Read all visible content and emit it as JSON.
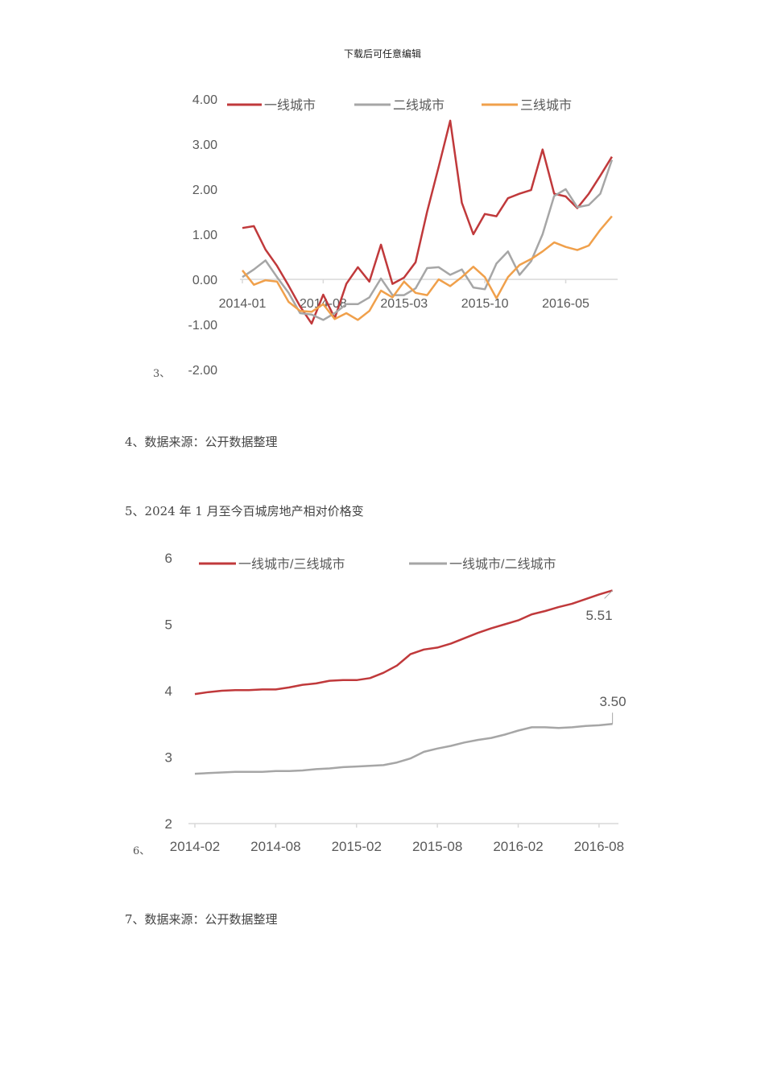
{
  "header": "下载后可任意编辑",
  "paragraphs": {
    "p3": "3、",
    "p4": "4、数据来源：公开数据整理",
    "p5": "5、2024 年 1 月至今百城房地产相对价格变",
    "p6": "6、",
    "p7": "7、数据来源：公开数据整理"
  },
  "chart_data": [
    {
      "type": "line",
      "title": "",
      "xlabel": "",
      "ylabel": "",
      "ylim": [
        -2,
        4
      ],
      "y_ticks": [
        "4.00",
        "3.00",
        "2.00",
        "1.00",
        "0.00",
        "-1.00",
        "-2.00"
      ],
      "x_tick_labels": [
        "2014-01",
        "2014-08",
        "2015-03",
        "2015-10",
        "2016-05"
      ],
      "grid": false,
      "legend": "top",
      "x": [
        "2014-01",
        "2014-02",
        "2014-03",
        "2014-04",
        "2014-05",
        "2014-06",
        "2014-07",
        "2014-08",
        "2014-09",
        "2014-10",
        "2014-11",
        "2014-12",
        "2015-01",
        "2015-02",
        "2015-03",
        "2015-04",
        "2015-05",
        "2015-06",
        "2015-07",
        "2015-08",
        "2015-09",
        "2015-10",
        "2015-11",
        "2015-12",
        "2016-01",
        "2016-02",
        "2016-03",
        "2016-04",
        "2016-05",
        "2016-06",
        "2016-07",
        "2016-08",
        "2016-09"
      ],
      "series": [
        {
          "name": "一线城市",
          "color": "#c0393b",
          "values": [
            1.14,
            1.18,
            0.66,
            0.3,
            -0.14,
            -0.6,
            -0.98,
            -0.34,
            -0.86,
            -0.1,
            0.27,
            -0.05,
            0.77,
            -0.1,
            0.04,
            0.38,
            1.5,
            2.5,
            3.52,
            1.7,
            1.0,
            1.45,
            1.4,
            1.8,
            1.9,
            1.98,
            2.88,
            1.9,
            1.84,
            1.58,
            1.9,
            2.3,
            2.72
          ]
        },
        {
          "name": "二线城市",
          "color": "#a6a6a6",
          "values": [
            0.05,
            0.22,
            0.42,
            0.05,
            -0.3,
            -0.75,
            -0.78,
            -0.9,
            -0.75,
            -0.55,
            -0.55,
            -0.4,
            0.02,
            -0.35,
            -0.35,
            -0.2,
            0.25,
            0.27,
            0.1,
            0.22,
            -0.18,
            -0.22,
            0.35,
            0.62,
            0.1,
            0.4,
            1.0,
            1.85,
            2.0,
            1.6,
            1.65,
            1.9,
            2.65
          ]
        },
        {
          "name": "三线城市",
          "color": "#f0a04b",
          "values": [
            0.2,
            -0.12,
            -0.02,
            -0.05,
            -0.5,
            -0.7,
            -0.72,
            -0.55,
            -0.88,
            -0.75,
            -0.9,
            -0.7,
            -0.25,
            -0.4,
            -0.05,
            -0.3,
            -0.35,
            0.0,
            -0.15,
            0.05,
            0.28,
            0.05,
            -0.42,
            0.05,
            0.32,
            0.45,
            0.62,
            0.82,
            0.72,
            0.65,
            0.75,
            1.1,
            1.4
          ]
        }
      ]
    },
    {
      "type": "line",
      "title": "",
      "xlabel": "",
      "ylabel": "",
      "ylim": [
        2,
        6
      ],
      "y_ticks": [
        "6",
        "5",
        "4",
        "3",
        "2"
      ],
      "x_tick_labels": [
        "2014-02",
        "2014-08",
        "2015-02",
        "2015-08",
        "2016-02",
        "2016-08"
      ],
      "grid": false,
      "legend": "top",
      "x": [
        "2014-02",
        "2014-03",
        "2014-04",
        "2014-05",
        "2014-06",
        "2014-07",
        "2014-08",
        "2014-09",
        "2014-10",
        "2014-11",
        "2014-12",
        "2015-01",
        "2015-02",
        "2015-03",
        "2015-04",
        "2015-05",
        "2015-06",
        "2015-07",
        "2015-08",
        "2015-09",
        "2015-10",
        "2015-11",
        "2015-12",
        "2016-01",
        "2016-02",
        "2016-03",
        "2016-04",
        "2016-05",
        "2016-06",
        "2016-07",
        "2016-08",
        "2016-09"
      ],
      "series": [
        {
          "name": "一线城市/三线城市",
          "color": "#c0393b",
          "values": [
            3.95,
            3.98,
            4.0,
            4.01,
            4.01,
            4.02,
            4.02,
            4.05,
            4.09,
            4.11,
            4.15,
            4.16,
            4.16,
            4.19,
            4.27,
            4.38,
            4.55,
            4.62,
            4.65,
            4.71,
            4.79,
            4.87,
            4.94,
            5.0,
            5.06,
            5.15,
            5.2,
            5.26,
            5.31,
            5.38,
            5.45,
            5.51
          ],
          "end_label": "5.51"
        },
        {
          "name": "一线城市/二线城市",
          "color": "#a6a6a6",
          "values": [
            2.75,
            2.76,
            2.77,
            2.78,
            2.78,
            2.78,
            2.79,
            2.79,
            2.8,
            2.82,
            2.83,
            2.85,
            2.86,
            2.87,
            2.88,
            2.92,
            2.98,
            3.08,
            3.13,
            3.17,
            3.22,
            3.26,
            3.29,
            3.34,
            3.4,
            3.45,
            3.45,
            3.44,
            3.45,
            3.47,
            3.48,
            3.5
          ],
          "end_label": "3.50"
        }
      ]
    }
  ]
}
